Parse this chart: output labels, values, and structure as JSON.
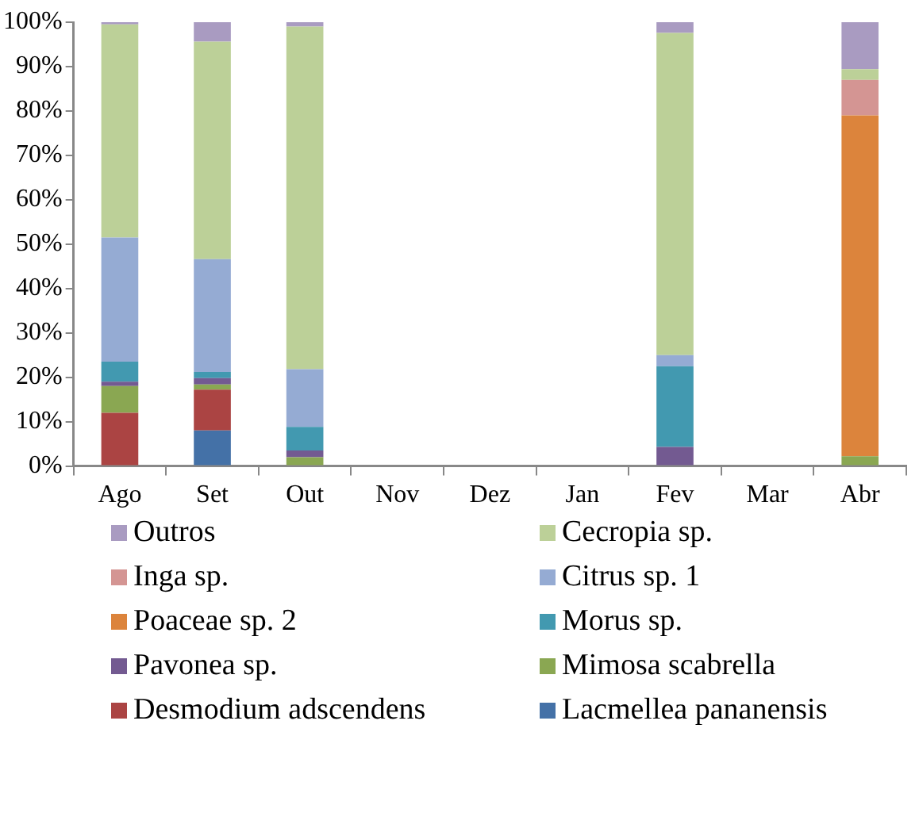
{
  "chart_data": {
    "type": "bar",
    "stacked": true,
    "categories": [
      "Ago",
      "Set",
      "Out",
      "Nov",
      "Dez",
      "Jan",
      "Fev",
      "Mar",
      "Abr"
    ],
    "ylim": [
      0,
      100
    ],
    "yticks": [
      {
        "value": 0,
        "label": "0%"
      },
      {
        "value": 10,
        "label": "10%"
      },
      {
        "value": 20,
        "label": "20%"
      },
      {
        "value": 30,
        "label": "30%"
      },
      {
        "value": 40,
        "label": "40%"
      },
      {
        "value": 50,
        "label": "50%"
      },
      {
        "value": 60,
        "label": "60%"
      },
      {
        "value": 70,
        "label": "70%"
      },
      {
        "value": 80,
        "label": "80%"
      },
      {
        "value": 90,
        "label": "90%"
      },
      {
        "value": 100,
        "label": "100%"
      }
    ],
    "grid": false,
    "legend": "bottom",
    "series": [
      {
        "name": "Lacmellea pananensis",
        "color": "#4471a7",
        "values": [
          0,
          8,
          0,
          null,
          null,
          null,
          0,
          null,
          0
        ]
      },
      {
        "name": "Desmodium adscendens",
        "color": "#ab4443",
        "values": [
          12,
          9.2,
          0,
          null,
          null,
          null,
          0,
          null,
          0
        ]
      },
      {
        "name": "Mimosa scabrella",
        "color": "#8aa752",
        "values": [
          6,
          1.2,
          2,
          null,
          null,
          null,
          0,
          null,
          2.2
        ]
      },
      {
        "name": "Pavonea sp.",
        "color": "#735a91",
        "values": [
          1,
          1.4,
          1.5,
          null,
          null,
          null,
          4.3,
          null,
          0
        ]
      },
      {
        "name": "Morus sp.",
        "color": "#4299b0",
        "values": [
          4.5,
          1.4,
          5.3,
          null,
          null,
          null,
          18.2,
          null,
          0
        ]
      },
      {
        "name": "Poaceae sp. 2",
        "color": "#dc843c",
        "values": [
          0,
          0,
          0,
          null,
          null,
          null,
          0,
          null,
          76.8
        ]
      },
      {
        "name": "Citrus sp. 1",
        "color": "#95abd3",
        "values": [
          28,
          25.4,
          13,
          null,
          null,
          null,
          2.5,
          null,
          0
        ]
      },
      {
        "name": "Inga sp.",
        "color": "#d49593",
        "values": [
          0,
          0,
          0,
          null,
          null,
          null,
          0,
          null,
          8
        ]
      },
      {
        "name": "Cecropia sp.",
        "color": "#bcd098",
        "values": [
          48,
          49,
          77.2,
          null,
          null,
          null,
          72.6,
          null,
          2.4
        ]
      },
      {
        "name": "Outros",
        "color": "#a99bc1",
        "values": [
          0.5,
          4.4,
          1,
          null,
          null,
          null,
          2.4,
          null,
          10.6
        ]
      }
    ]
  }
}
